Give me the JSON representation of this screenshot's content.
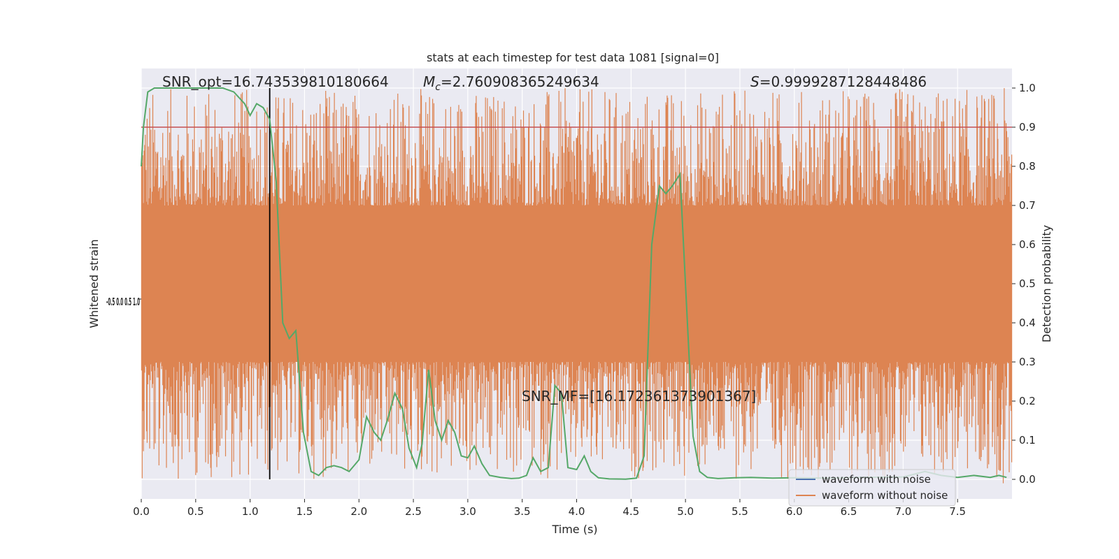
{
  "chart_data": {
    "type": "line",
    "title": "stats at each timestep for test data 1081 [signal=0]",
    "xlabel": "Time (s)",
    "ylabel_left": "Whitened strain",
    "ylabel_right": "Detection probability",
    "xlim": [
      0.0,
      8.0
    ],
    "ylim_right": [
      -0.05,
      1.05
    ],
    "x_ticks": [
      "0.0",
      "0.5",
      "1.0",
      "1.5",
      "2.0",
      "2.5",
      "3.0",
      "3.5",
      "4.0",
      "4.5",
      "5.0",
      "5.5",
      "6.0",
      "6.5",
      "7.0",
      "7.5"
    ],
    "x_tick_values": [
      0.0,
      0.5,
      1.0,
      1.5,
      2.0,
      2.5,
      3.0,
      3.5,
      4.0,
      4.5,
      5.0,
      5.5,
      6.0,
      6.5,
      7.0,
      7.5
    ],
    "y_right_ticks": [
      "0.0",
      "0.1",
      "0.2",
      "0.3",
      "0.4",
      "0.5",
      "0.6",
      "0.7",
      "0.8",
      "0.9",
      "1.0"
    ],
    "y_right_tick_values": [
      0.0,
      0.1,
      0.2,
      0.3,
      0.4,
      0.5,
      0.6,
      0.7,
      0.8,
      0.9,
      1.0
    ],
    "grid": true,
    "legend_position": "bottom-right",
    "annotations": {
      "snr_opt": "SNR_opt=16.743539810180664",
      "mc_symbol": "M",
      "mc_sub": "c",
      "mc_value": "=2.760908365249634",
      "s_symbol": "S",
      "s_value": "=0.9999287128448486",
      "snr_mf": "SNR_MF=[16.172361373901367]"
    },
    "threshold": {
      "value": 0.9,
      "color": "#c44e52"
    },
    "marker_time": 1.18,
    "series": [
      {
        "name": "waveform with noise",
        "color": "#4c72b0",
        "values": []
      },
      {
        "name": "waveform without noise",
        "color": "#dd8452",
        "band_center": 0.5,
        "band_dense_halfwidth": 0.2,
        "spikes": [
          {
            "x": 1.06,
            "y": 0.94
          },
          {
            "x": 6.14,
            "y": 0.9
          },
          {
            "x": 7.87,
            "y": 0.87
          },
          {
            "x": 1.82,
            "y": 0.83
          },
          {
            "x": 7.92,
            "y": -0.01
          },
          {
            "x": 0.69,
            "y": 0.06
          },
          {
            "x": 1.59,
            "y": 0.23
          },
          {
            "x": 0.17,
            "y": 0.13
          }
        ]
      },
      {
        "name": "detection probability",
        "color": "#55a868",
        "x": [
          0.0,
          0.02,
          0.06,
          0.12,
          0.2,
          0.3,
          0.45,
          0.6,
          0.75,
          0.85,
          0.95,
          1.0,
          1.06,
          1.12,
          1.18,
          1.24,
          1.3,
          1.36,
          1.42,
          1.49,
          1.56,
          1.63,
          1.7,
          1.77,
          1.84,
          1.91,
          2.0,
          2.07,
          2.14,
          2.2,
          2.26,
          2.33,
          2.4,
          2.46,
          2.53,
          2.58,
          2.64,
          2.7,
          2.76,
          2.82,
          2.88,
          2.94,
          3.0,
          3.06,
          3.13,
          3.2,
          3.3,
          3.4,
          3.47,
          3.54,
          3.6,
          3.67,
          3.74,
          3.8,
          3.86,
          3.92,
          4.0,
          4.07,
          4.13,
          4.2,
          4.3,
          4.45,
          4.55,
          4.62,
          4.69,
          4.76,
          4.82,
          4.88,
          4.95,
          5.0,
          5.07,
          5.13,
          5.2,
          5.3,
          5.45,
          5.6,
          5.8,
          6.0,
          6.3,
          6.6,
          7.0,
          7.2,
          7.35,
          7.5,
          7.65,
          7.8,
          7.88,
          7.95
        ],
        "values": [
          0.8,
          0.9,
          0.99,
          1.0,
          1.0,
          1.0,
          1.0,
          1.0,
          1.0,
          0.99,
          0.96,
          0.93,
          0.96,
          0.95,
          0.92,
          0.76,
          0.4,
          0.36,
          0.38,
          0.12,
          0.02,
          0.01,
          0.03,
          0.035,
          0.03,
          0.02,
          0.05,
          0.16,
          0.12,
          0.1,
          0.15,
          0.22,
          0.18,
          0.08,
          0.03,
          0.09,
          0.28,
          0.15,
          0.1,
          0.15,
          0.12,
          0.06,
          0.055,
          0.085,
          0.04,
          0.01,
          0.005,
          0.002,
          0.003,
          0.01,
          0.055,
          0.02,
          0.03,
          0.24,
          0.22,
          0.03,
          0.025,
          0.06,
          0.02,
          0.004,
          0.001,
          0.0005,
          0.003,
          0.06,
          0.6,
          0.75,
          0.73,
          0.75,
          0.78,
          0.5,
          0.11,
          0.02,
          0.005,
          0.002,
          0.004,
          0.005,
          0.003,
          0.004,
          0.003,
          0.005,
          0.006,
          0.02,
          0.01,
          0.005,
          0.01,
          0.005,
          0.01,
          0.005
        ]
      }
    ],
    "left_axis_tick_glyphs": "-0.5 0.0 0.5 1.0"
  }
}
